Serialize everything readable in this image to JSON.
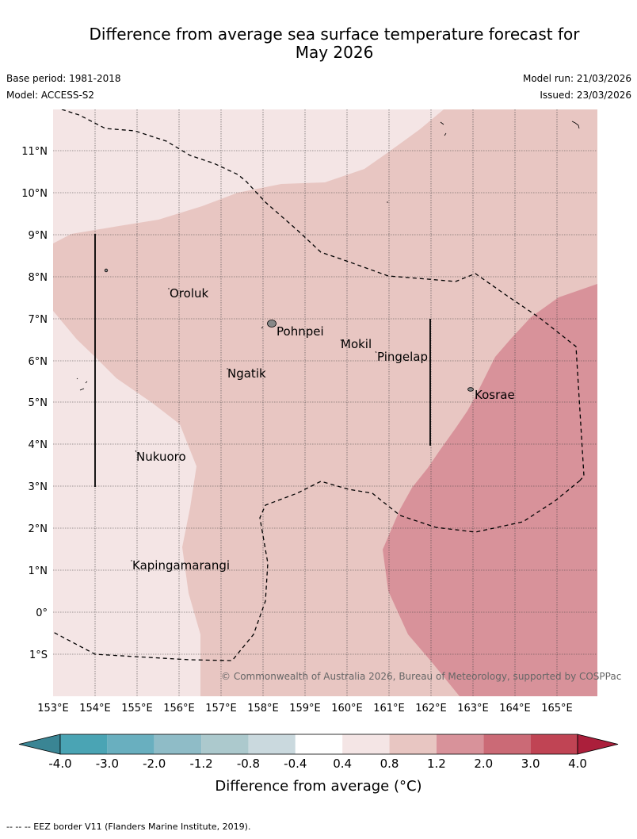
{
  "title_line1": "Difference from average sea surface temperature forecast for",
  "title_line2": "May 2026",
  "base_period": "Base period: 1981-2018",
  "model": "Model: ACCESS-S2",
  "model_run": "Model run: 21/03/2026",
  "issued": "Issued: 23/03/2026",
  "latitudes": [
    "11°N",
    "10°N",
    "9°N",
    "8°N",
    "7°N",
    "6°N",
    "5°N",
    "4°N",
    "3°N",
    "2°N",
    "1°N",
    "0°",
    "1°S"
  ],
  "longitudes": [
    "153°E",
    "154°E",
    "155°E",
    "156°E",
    "157°E",
    "158°E",
    "159°E",
    "160°E",
    "161°E",
    "162°E",
    "163°E",
    "164°E",
    "165°E"
  ],
  "places": {
    "oroluk": "Oroluk",
    "pohnpei": "Pohnpei",
    "mokil": "Mokil",
    "pingelap": "Pingelap",
    "ngatik": "Ngatik",
    "kosrae": "Kosrae",
    "nukuoro": "Nukuoro",
    "kapingamarangi": "Kapingamarangi"
  },
  "copyright": "© Commonwealth of Australia 2026, Bureau of Meteorology, supported by COSPPac",
  "colorbar": {
    "ticks": [
      "-4.0",
      "-3.0",
      "-2.0",
      "-1.2",
      "-0.8",
      "-0.4",
      "0.4",
      "0.8",
      "1.2",
      "2.0",
      "3.0",
      "4.0"
    ],
    "label": "Difference from average (°C)",
    "colors": [
      "#4aa4b4",
      "#69afbf",
      "#8fbcc7",
      "#acc9cd",
      "#cad9de",
      "#ffffff",
      "#f4e5e5",
      "#e8c6c2",
      "#d8929a",
      "#cb6a76",
      "#c04454"
    ],
    "under_color": "#3a8594",
    "over_color": "#ab1f3b"
  },
  "footer": "--  --  -- EEZ border V11 (Flanders Marine Institute, 2019)."
}
